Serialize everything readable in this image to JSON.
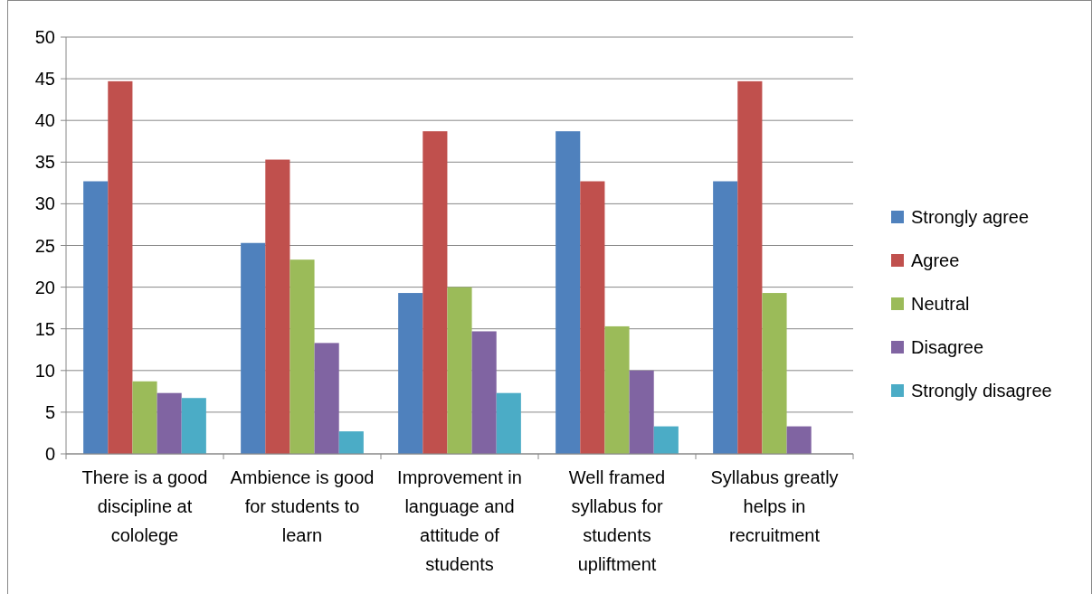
{
  "chart_data": {
    "type": "bar",
    "categories": [
      "There is a good discipline at cololege",
      "Ambience is good for students to learn",
      "Improvement in language and attitude of students",
      "Well framed syllabus for students upliftment",
      "Syllabus greatly helps in recruitment"
    ],
    "series": [
      {
        "name": "Strongly agree",
        "color": "#4f81bd",
        "values": [
          32.7,
          25.3,
          19.3,
          38.7,
          32.7
        ]
      },
      {
        "name": "Agree",
        "color": "#c0504d",
        "values": [
          44.7,
          35.3,
          38.7,
          32.7,
          44.7
        ]
      },
      {
        "name": "Neutral",
        "color": "#9bbb59",
        "values": [
          8.7,
          23.3,
          20,
          15.3,
          19.3
        ]
      },
      {
        "name": "Disagree",
        "color": "#8064a2",
        "values": [
          7.3,
          13.3,
          14.7,
          10,
          3.3
        ]
      },
      {
        "name": "Strongly disagree",
        "color": "#4bacc6",
        "values": [
          6.7,
          2.7,
          7.3,
          3.3,
          0
        ]
      }
    ],
    "ylim": [
      0,
      50
    ],
    "yticks": [
      0,
      5,
      10,
      15,
      20,
      25,
      30,
      35,
      40,
      45,
      50
    ],
    "grid": "y",
    "legend": "right"
  }
}
